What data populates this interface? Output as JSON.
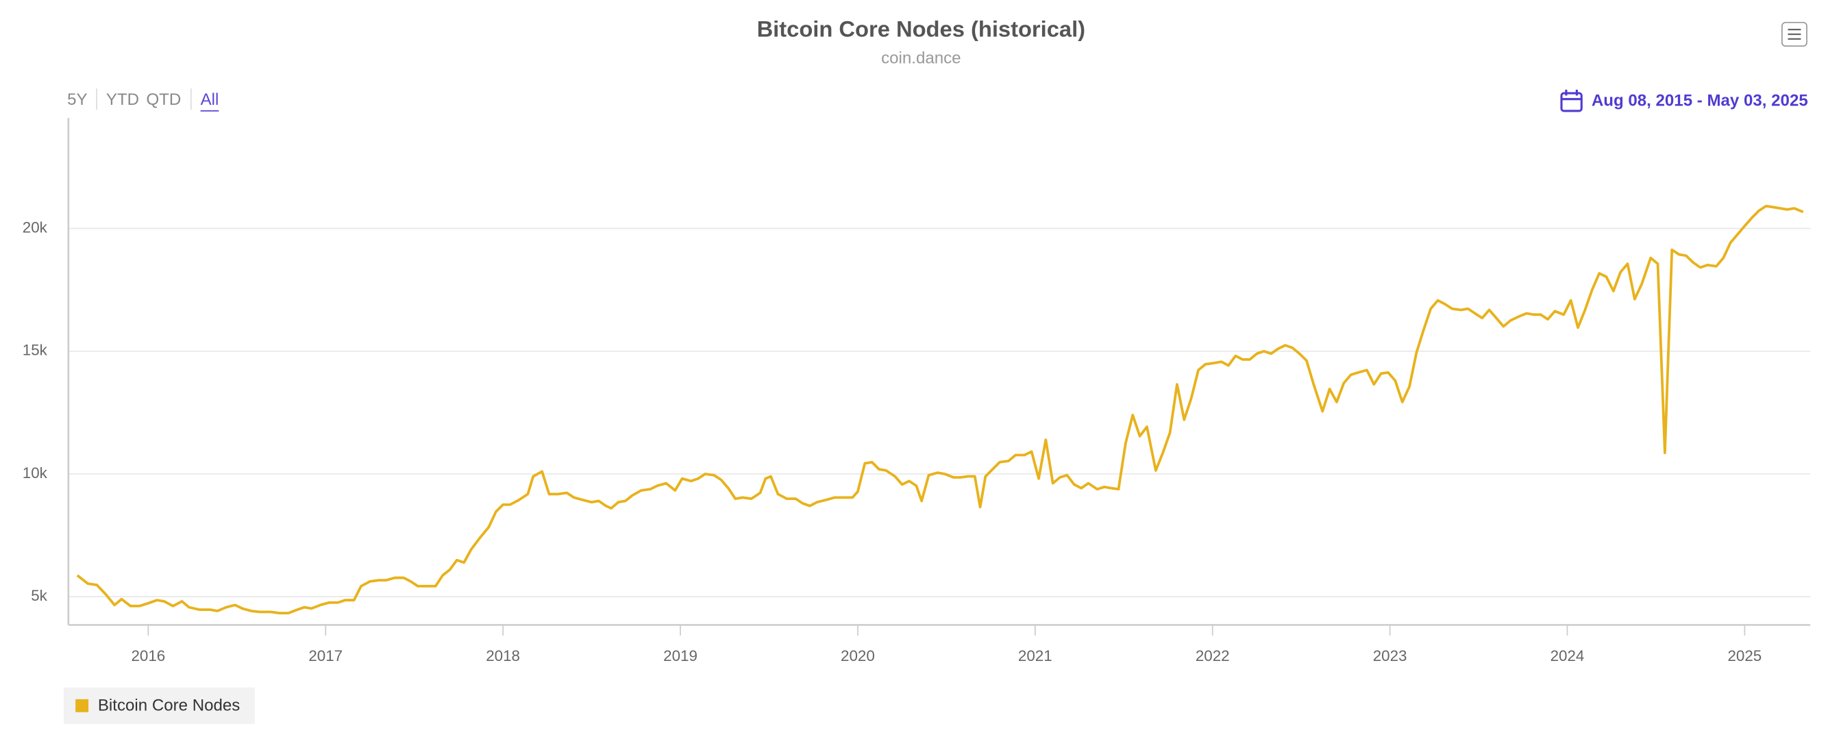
{
  "chart_data": {
    "type": "line",
    "title": "Bitcoin Core Nodes (historical)",
    "subtitle": "coin.dance",
    "range_buttons": [
      "5Y",
      "YTD",
      "QTD",
      "All"
    ],
    "date_range": "Aug 08, 2015 - May 03, 2025",
    "xlim": [
      2015.55,
      2025.37
    ],
    "xticks": [
      2016,
      2017,
      2018,
      2019,
      2020,
      2021,
      2022,
      2023,
      2024,
      2025
    ],
    "ylim": [
      3850,
      24500
    ],
    "yticks": [
      {
        "value": 5000,
        "label": "5k"
      },
      {
        "value": 10000,
        "label": "10k"
      },
      {
        "value": 15000,
        "label": "15k"
      },
      {
        "value": 20000,
        "label": "20k"
      }
    ],
    "grid": true,
    "legend": "bottom-left",
    "x": [
      2015.6,
      2015.66,
      2015.71,
      2015.76,
      2015.81,
      2015.85,
      2015.9,
      2015.95,
      2015.99,
      2016.05,
      2016.09,
      2016.14,
      2016.19,
      2016.23,
      2016.29,
      2016.35,
      2016.39,
      2016.44,
      2016.49,
      2016.53,
      2016.58,
      2016.63,
      2016.69,
      2016.74,
      2016.79,
      2016.84,
      2016.88,
      2016.92,
      2016.97,
      2017.02,
      2017.07,
      2017.11,
      2017.16,
      2017.2,
      2017.25,
      2017.3,
      2017.34,
      2017.39,
      2017.44,
      2017.48,
      2017.52,
      2017.57,
      2017.62,
      2017.66,
      2017.7,
      2017.74,
      2017.78,
      2017.82,
      2017.87,
      2017.92,
      2017.96,
      2018.0,
      2018.04,
      2018.09,
      2018.14,
      2018.17,
      2018.22,
      2018.26,
      2018.31,
      2018.36,
      2018.4,
      2018.45,
      2018.5,
      2018.54,
      2018.58,
      2018.61,
      2018.65,
      2018.69,
      2018.73,
      2018.78,
      2018.83,
      2018.87,
      2018.92,
      2018.97,
      2019.01,
      2019.06,
      2019.1,
      2019.14,
      2019.19,
      2019.23,
      2019.27,
      2019.31,
      2019.35,
      2019.4,
      2019.45,
      2019.48,
      2019.51,
      2019.55,
      2019.6,
      2019.65,
      2019.69,
      2019.73,
      2019.77,
      2019.82,
      2019.87,
      2019.92,
      2019.97,
      2020.0,
      2020.04,
      2020.08,
      2020.12,
      2020.16,
      2020.21,
      2020.25,
      2020.29,
      2020.33,
      2020.36,
      2020.4,
      2020.45,
      2020.49,
      2020.54,
      2020.58,
      2020.62,
      2020.66,
      2020.69,
      2020.72,
      2020.76,
      2020.8,
      2020.85,
      2020.89,
      2020.94,
      2020.98,
      2021.02,
      2021.06,
      2021.1,
      2021.14,
      2021.18,
      2021.22,
      2021.26,
      2021.3,
      2021.35,
      2021.39,
      2021.43,
      2021.47,
      2021.51,
      2021.55,
      2021.59,
      2021.63,
      2021.68,
      2021.72,
      2021.76,
      2021.8,
      2021.84,
      2021.88,
      2021.92,
      2021.96,
      2022.01,
      2022.05,
      2022.09,
      2022.13,
      2022.17,
      2022.21,
      2022.25,
      2022.29,
      2022.33,
      2022.37,
      2022.41,
      2022.45,
      2022.49,
      2022.53,
      2022.57,
      2022.62,
      2022.66,
      2022.7,
      2022.74,
      2022.78,
      2022.82,
      2022.87,
      2022.91,
      2022.95,
      2022.99,
      2023.03,
      2023.07,
      2023.11,
      2023.15,
      2023.19,
      2023.23,
      2023.27,
      2023.31,
      2023.35,
      2023.4,
      2023.44,
      2023.48,
      2023.52,
      2023.56,
      2023.6,
      2023.64,
      2023.68,
      2023.72,
      2023.77,
      2023.81,
      2023.85,
      2023.89,
      2023.93,
      2023.98,
      2024.02,
      2024.06,
      2024.1,
      2024.14,
      2024.18,
      2024.22,
      2024.26,
      2024.3,
      2024.34,
      2024.38,
      2024.42,
      2024.47,
      2024.51,
      2024.55,
      2024.59,
      2024.63,
      2024.67,
      2024.71,
      2024.75,
      2024.79,
      2024.84,
      2024.88,
      2024.92,
      2024.96,
      2025.0,
      2025.04,
      2025.08,
      2025.12,
      2025.16,
      2025.2,
      2025.24,
      2025.28,
      2025.33
    ],
    "series": [
      {
        "name": "Bitcoin Core Nodes",
        "color": "#e8b21c",
        "values": [
          5870,
          5530,
          5480,
          5100,
          4660,
          4900,
          4620,
          4620,
          4710,
          4860,
          4810,
          4620,
          4810,
          4570,
          4470,
          4470,
          4420,
          4570,
          4660,
          4520,
          4420,
          4380,
          4380,
          4330,
          4330,
          4470,
          4570,
          4520,
          4660,
          4760,
          4760,
          4860,
          4860,
          5430,
          5620,
          5670,
          5670,
          5770,
          5770,
          5620,
          5430,
          5430,
          5430,
          5870,
          6100,
          6490,
          6390,
          6920,
          7400,
          7840,
          8460,
          8750,
          8750,
          8940,
          9180,
          9900,
          10100,
          9180,
          9180,
          9230,
          9040,
          8940,
          8850,
          8900,
          8700,
          8600,
          8850,
          8900,
          9130,
          9330,
          9380,
          9520,
          9620,
          9330,
          9810,
          9710,
          9810,
          10000,
          9950,
          9760,
          9420,
          8990,
          9040,
          8990,
          9230,
          9810,
          9900,
          9180,
          8990,
          8990,
          8800,
          8700,
          8850,
          8940,
          9040,
          9040,
          9040,
          9280,
          10430,
          10480,
          10190,
          10140,
          9900,
          9570,
          9710,
          9520,
          8900,
          9950,
          10050,
          10000,
          9860,
          9860,
          9900,
          9900,
          8650,
          9900,
          10190,
          10480,
          10530,
          10770,
          10770,
          10910,
          9810,
          11390,
          9620,
          9860,
          9950,
          9570,
          9420,
          9620,
          9380,
          9470,
          9420,
          9380,
          11250,
          12400,
          11540,
          11920,
          10140,
          10860,
          11680,
          13650,
          12210,
          13080,
          14230,
          14470,
          14520,
          14570,
          14420,
          14810,
          14660,
          14660,
          14900,
          15000,
          14900,
          15100,
          15240,
          15140,
          14900,
          14620,
          13650,
          12550,
          13460,
          12930,
          13700,
          14040,
          14130,
          14230,
          13650,
          14090,
          14130,
          13800,
          12930,
          13560,
          14950,
          15870,
          16730,
          17070,
          16920,
          16730,
          16680,
          16730,
          16540,
          16350,
          16680,
          16350,
          16010,
          16250,
          16390,
          16540,
          16490,
          16490,
          16300,
          16630,
          16490,
          17070,
          15960,
          16680,
          17500,
          18170,
          18030,
          17450,
          18220,
          18560,
          17120,
          17740,
          18800,
          18560,
          10860,
          19130,
          18940,
          18890,
          18610,
          18410,
          18510,
          18460,
          18800,
          19420,
          19760,
          20100,
          20430,
          20720,
          20910,
          20870,
          20820,
          20770,
          20820,
          20670
        ]
      }
    ]
  }
}
